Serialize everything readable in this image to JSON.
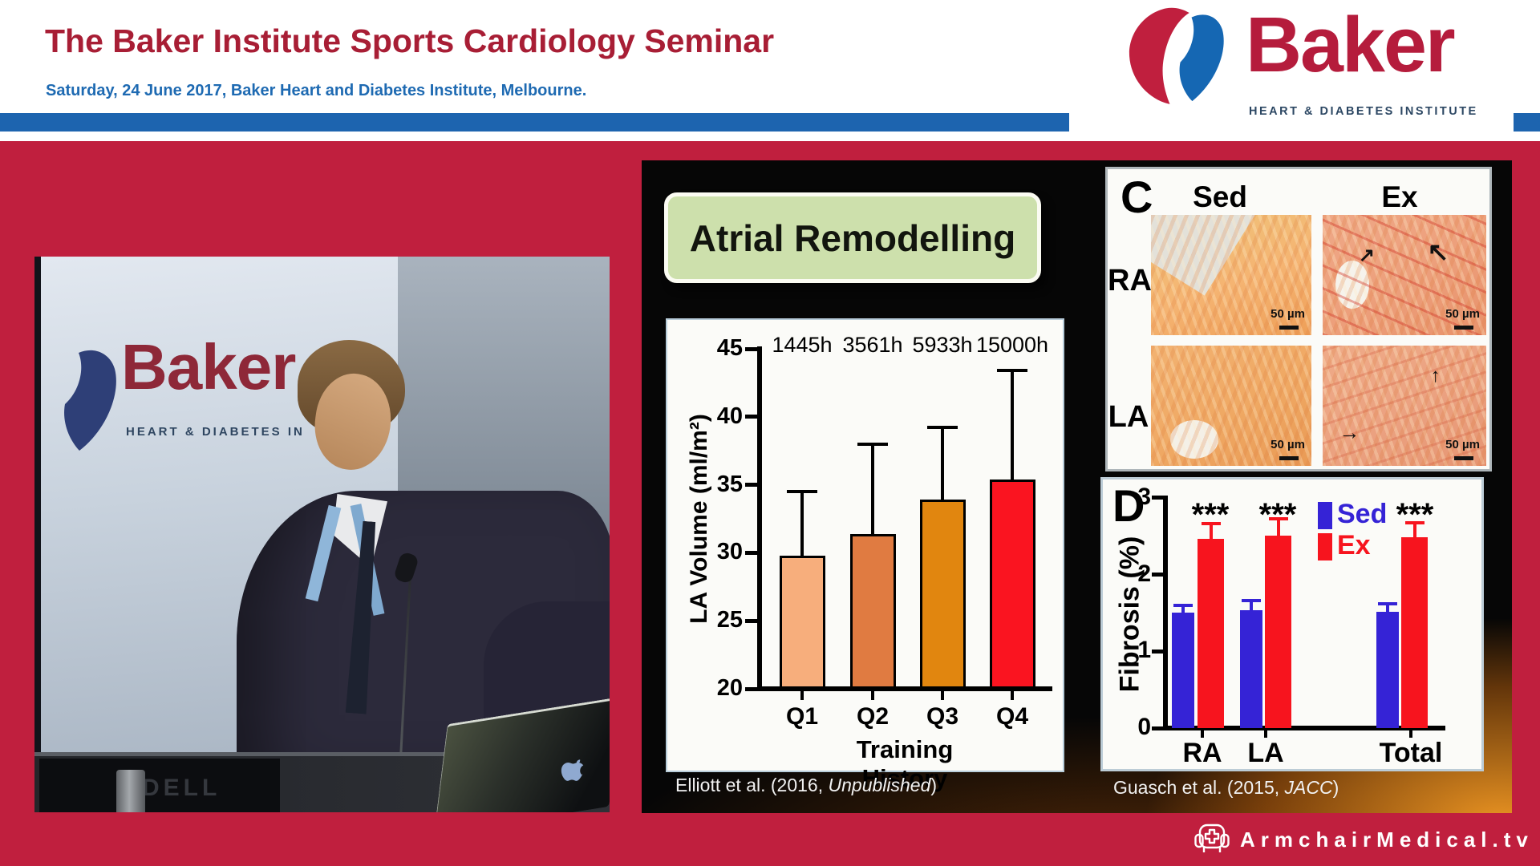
{
  "theme": {
    "bg_crimson": "#c01f3e",
    "header_title_red": "#a81e35",
    "header_blue": "#1d64af",
    "subtitle_blue": "#1e6ab2",
    "logo_red": "#b51c3c",
    "logo_blue": "#1567b3",
    "slide_green_box": "#cde0ac"
  },
  "header": {
    "title": "The Baker Institute Sports Cardiology Seminar",
    "subtitle": "Saturday, 24 June 2017, Baker Heart and Diabetes Institute, Melbourne.",
    "logo": {
      "name": "Baker",
      "tagline": "HEART & DIABETES INSTITUTE"
    }
  },
  "video": {
    "banner_word": "Baker",
    "banner_tagline": "HEART & DIABETES IN",
    "monitor_brand": "DELL"
  },
  "slide": {
    "title": "Atrial Remodelling",
    "citation_left": {
      "pre": "Elliott et al. (2016, ",
      "em": "Unpublished",
      "post": ")"
    },
    "citation_right": {
      "pre": "Guasch et al. (2015, ",
      "em": "JACC",
      "post": ")"
    },
    "panel_c": {
      "label": "C",
      "col_headers": [
        "Sed",
        "Ex"
      ],
      "row_labels": [
        "RA",
        "LA"
      ],
      "scale_label": "50 µm",
      "arrows": {
        "ra_ex": [
          "↗",
          "↖"
        ],
        "la_ex": [
          "→",
          "↑"
        ]
      }
    }
  },
  "footer": {
    "logo_text": "ArmchairMedical.tv"
  },
  "chart_data": [
    {
      "type": "bar",
      "title": "",
      "categories": [
        "Q1",
        "Q2",
        "Q3",
        "Q4"
      ],
      "values": [
        29.8,
        31.4,
        33.9,
        35.4
      ],
      "errors_upper_to": [
        34.5,
        38.0,
        39.2,
        43.4
      ],
      "bar_labels": [
        "1445h",
        "3561h",
        "5933h",
        "15000h"
      ],
      "bar_colors": [
        "#f7ae7c",
        "#e07b41",
        "#e1860f",
        "#fa1420"
      ],
      "xlabel": "Training History",
      "ylabel": "LA Volume (ml/m²)",
      "ylim": [
        20,
        45
      ],
      "yticks": [
        20,
        25,
        30,
        35,
        40,
        45
      ],
      "grid": false,
      "legend_position": "none"
    },
    {
      "type": "grouped-bar",
      "panel_label": "D",
      "categories": [
        "RA",
        "LA",
        "Total"
      ],
      "series": [
        {
          "name": "Sed",
          "color": "#3523d6",
          "values": [
            1.5,
            1.54,
            1.52
          ],
          "errors_to": [
            1.6,
            1.66,
            1.62
          ]
        },
        {
          "name": "Ex",
          "color": "#f7141e",
          "values": [
            2.47,
            2.51,
            2.49
          ],
          "errors_to": [
            2.66,
            2.73,
            2.68
          ]
        }
      ],
      "significance": [
        "***",
        "***",
        "***"
      ],
      "xlabel": "",
      "ylabel": "Fibrosis (%)",
      "ylim": [
        0,
        3
      ],
      "yticks": [
        0,
        1,
        2,
        3
      ],
      "grid": false,
      "legend_position": "top-right"
    }
  ]
}
